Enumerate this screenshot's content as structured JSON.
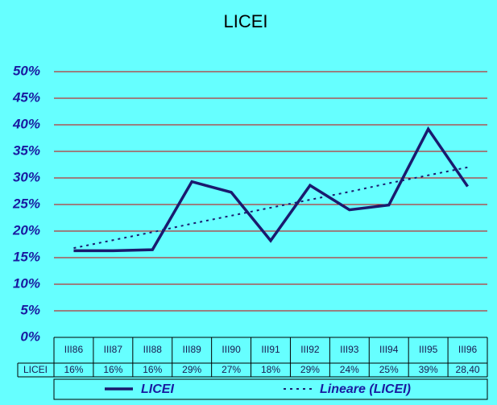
{
  "chart_data": {
    "type": "line",
    "title": "LICEI",
    "categories": [
      "III86",
      "III87",
      "III88",
      "III89",
      "III90",
      "III91",
      "III92",
      "III93",
      "III94",
      "III95",
      "III96"
    ],
    "series": [
      {
        "name": "LICEI",
        "color": "#1a1a6e",
        "style": "solid",
        "values": [
          16.3,
          16.3,
          16.5,
          29.3,
          27.3,
          18.2,
          28.6,
          24,
          24.9,
          39.2,
          28.4
        ],
        "value_labels": [
          "16%",
          "16%",
          "16%",
          "29%",
          "27%",
          "18%",
          "29%",
          "24%",
          "25%",
          "39%",
          "28,40"
        ]
      },
      {
        "name": "Lineare (LICEI)",
        "color": "#1a1a6e",
        "style": "dotted",
        "values": [
          16.8,
          18.3,
          19.8,
          21.4,
          22.9,
          24.4,
          25.9,
          27.4,
          29.0,
          30.5,
          32.0
        ]
      }
    ],
    "ylim": [
      0,
      50
    ],
    "yticks": [
      {
        "value": 0,
        "label": "0%"
      },
      {
        "value": 5,
        "label": "5%"
      },
      {
        "value": 10,
        "label": "10%"
      },
      {
        "value": 15,
        "label": "15%"
      },
      {
        "value": 20,
        "label": "20%"
      },
      {
        "value": 25,
        "label": "25%"
      },
      {
        "value": 30,
        "label": "30%"
      },
      {
        "value": 35,
        "label": "35%"
      },
      {
        "value": 40,
        "label": "40%"
      },
      {
        "value": 45,
        "label": "45%"
      },
      {
        "value": 50,
        "label": "50%"
      }
    ],
    "grid": true,
    "grid_color": "#cc0000"
  }
}
